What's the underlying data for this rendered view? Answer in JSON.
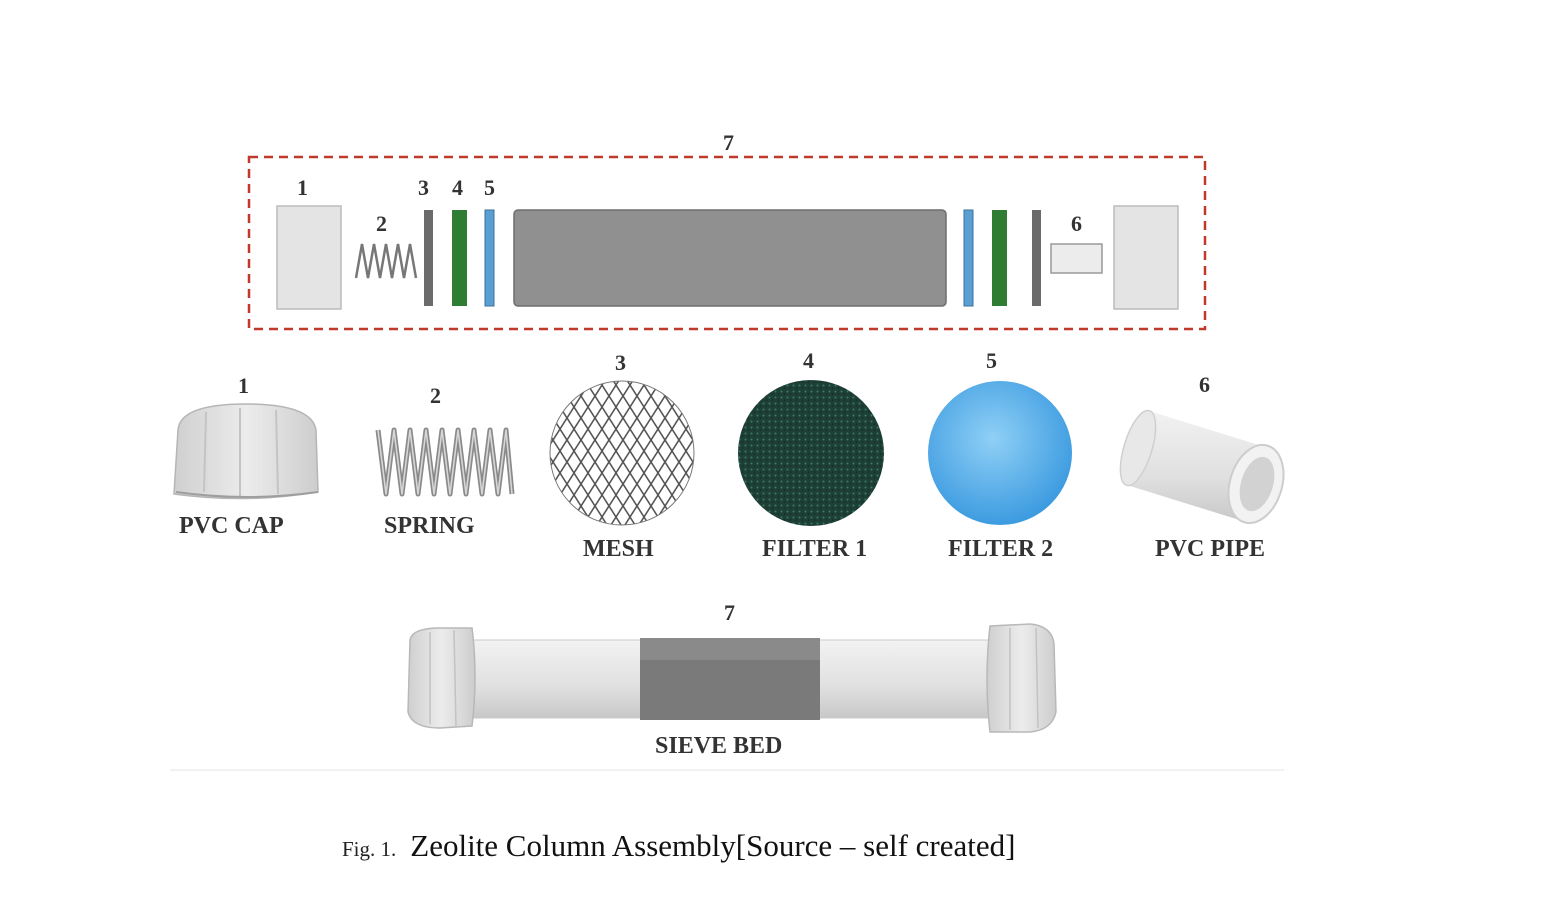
{
  "assembly": {
    "group_number": "7",
    "part_numbers": [
      "1",
      "2",
      "3",
      "4",
      "5",
      "6"
    ]
  },
  "parts": [
    {
      "number": "1",
      "label": "PVC CAP"
    },
    {
      "number": "2",
      "label": "SPRING"
    },
    {
      "number": "3",
      "label": "MESH"
    },
    {
      "number": "4",
      "label": "FILTER 1"
    },
    {
      "number": "5",
      "label": "FILTER 2"
    },
    {
      "number": "6",
      "label": "PVC PIPE"
    }
  ],
  "sieve_bed": {
    "number": "7",
    "label": "SIEVE BED"
  },
  "caption": {
    "prefix": "Fig. 1.",
    "text": "Zeolite Column Assembly[Source – self created]"
  },
  "colors": {
    "dashed_border": "#c0392b",
    "pvc": "#e4e4e4",
    "mesh_bar": "#6b6b6b",
    "filter1": "#2f7d32",
    "filter2": "#5a9fd4",
    "sieve_bed": "#909090",
    "filter1_disc": "#1f4a3e",
    "filter2_disc": "#4aa8e8"
  }
}
